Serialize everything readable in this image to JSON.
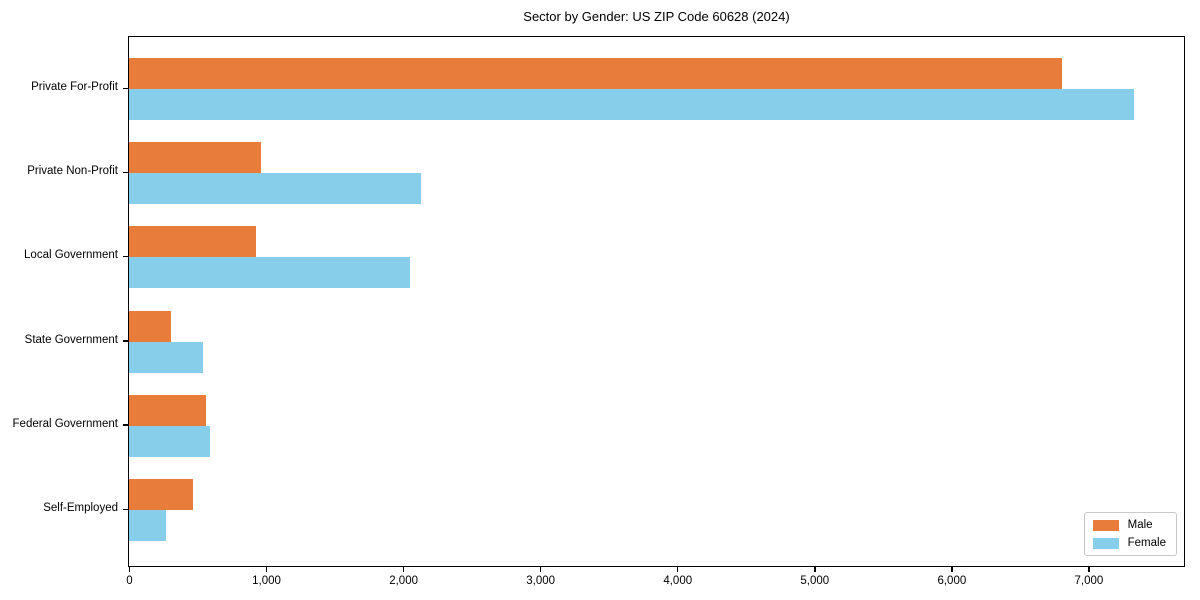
{
  "chart_data": {
    "type": "bar",
    "orientation": "horizontal",
    "title": "Sector by Gender: US ZIP Code 60628 (2024)",
    "categories": [
      "Private For-Profit",
      "Private Non-Profit",
      "Local Government",
      "State Government",
      "Federal Government",
      "Self-Employed"
    ],
    "series": [
      {
        "name": "Male",
        "color": "#e87d3b",
        "values": [
          6810,
          960,
          930,
          310,
          560,
          470
        ]
      },
      {
        "name": "Female",
        "color": "#87ceeb",
        "values": [
          7330,
          2130,
          2050,
          540,
          590,
          270
        ]
      }
    ],
    "xlabel": "",
    "ylabel": "",
    "xlim": [
      0,
      7690
    ],
    "xticks": [
      0,
      1000,
      2000,
      3000,
      4000,
      5000,
      6000,
      7000
    ],
    "xtick_labels": [
      "0",
      "1,000",
      "2,000",
      "3,000",
      "4,000",
      "5,000",
      "6,000",
      "7,000"
    ],
    "legend": {
      "position": "lower right",
      "entries": [
        "Male",
        "Female"
      ]
    },
    "grid": false
  }
}
